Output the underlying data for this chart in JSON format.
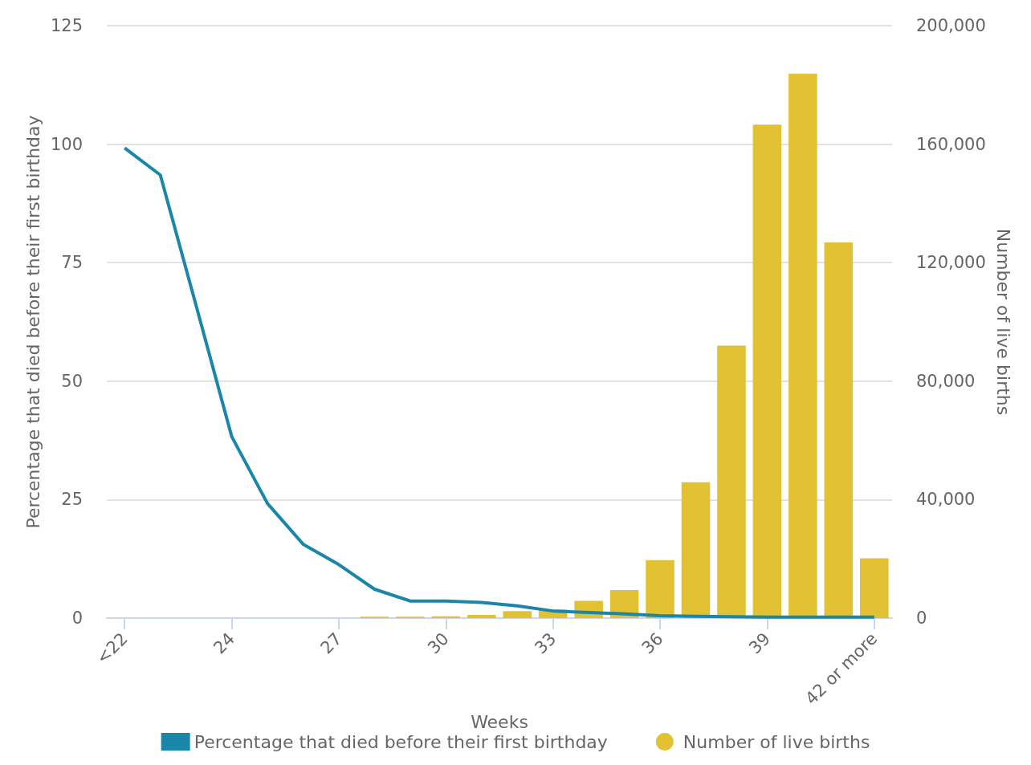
{
  "chart_data": {
    "type": "bar",
    "xlabel": "Weeks",
    "ylabel": "Percentage that died before their first birthday",
    "y2label": "Number of live births",
    "categories": [
      "<22",
      null,
      null,
      "24",
      null,
      null,
      "27",
      null,
      null,
      "30",
      null,
      null,
      "33",
      null,
      null,
      "36",
      null,
      null,
      "39",
      null,
      null,
      "42 or more"
    ],
    "series": [
      {
        "name": "Percentage that died before their first birthday",
        "type": "line",
        "color": "#1a86aa",
        "values": [
          99.2,
          93.5,
          66,
          38.3,
          24.2,
          15.6,
          11.3,
          6.1,
          3.6,
          3.6,
          3.3,
          2.6,
          1.5,
          1.2,
          0.9,
          0.5,
          0.4,
          0.3,
          0.2,
          0.2,
          0.2,
          0.2
        ]
      },
      {
        "name": "Number of live births",
        "axis": "y2",
        "color": "#e2c232",
        "values": [
          null,
          null,
          null,
          null,
          null,
          null,
          null,
          500,
          500,
          600,
          1100,
          2400,
          2900,
          5800,
          9500,
          19600,
          45900,
          92000,
          166600,
          183800,
          126800,
          20200
        ]
      }
    ],
    "ylim": [
      0,
      125
    ],
    "yticks": [
      0,
      25,
      50,
      75,
      100,
      125
    ],
    "y2lim": [
      0,
      200000
    ],
    "y2ticks": [
      {
        "value": 0,
        "label": "0"
      },
      {
        "value": 40000,
        "label": "40,000"
      },
      {
        "value": 80000,
        "label": "80,000"
      },
      {
        "value": 120000,
        "label": "120,000"
      },
      {
        "value": 160000,
        "label": "160,000"
      },
      {
        "value": 200000,
        "label": "200,000"
      }
    ],
    "grid": "y",
    "legend": "bottom",
    "marker": "none"
  }
}
